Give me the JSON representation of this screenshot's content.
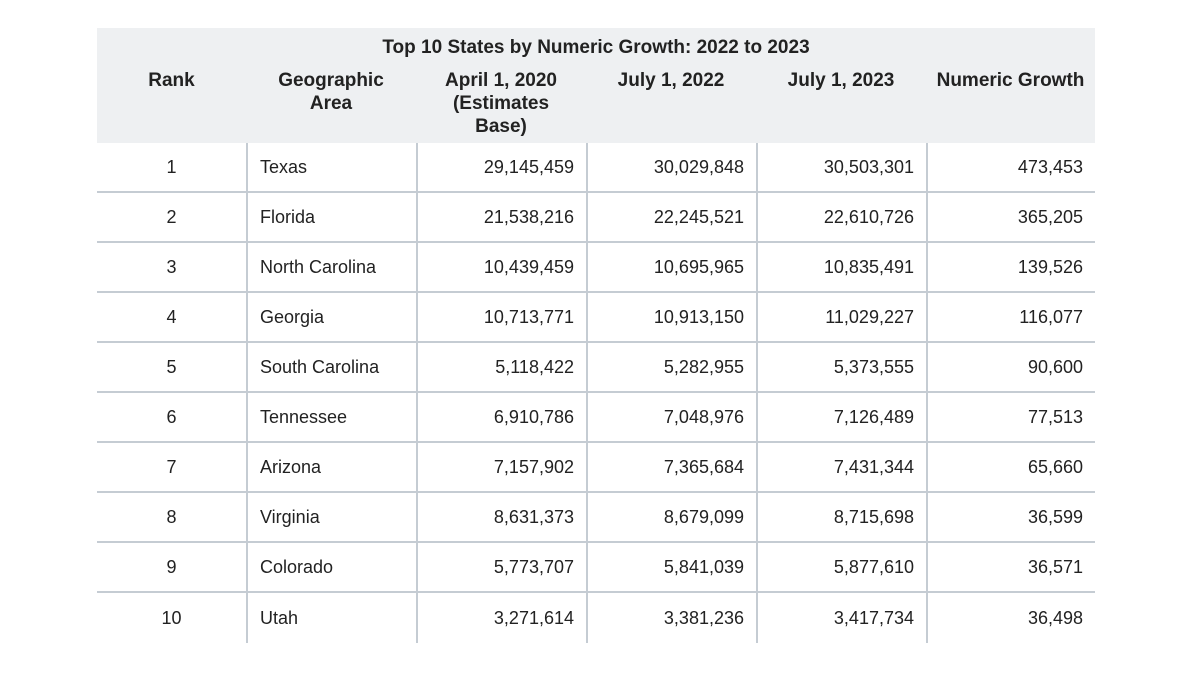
{
  "table": {
    "title": "Top 10 States by Numeric Growth: 2022 to 2023",
    "columns": [
      {
        "line1": "Rank",
        "line2": "",
        "line3": ""
      },
      {
        "line1": "Geographic",
        "line2": "Area",
        "line3": ""
      },
      {
        "line1": "April 1, 2020",
        "line2": "(Estimates",
        "line3": "Base)"
      },
      {
        "line1": "July 1, 2022",
        "line2": "",
        "line3": ""
      },
      {
        "line1": "July 1, 2023",
        "line2": "",
        "line3": ""
      },
      {
        "line1": "Numeric Growth",
        "line2": "",
        "line3": ""
      }
    ],
    "rows": [
      {
        "rank": "1",
        "area": "Texas",
        "apr2020": "29,145,459",
        "jul2022": "30,029,848",
        "jul2023": "30,503,301",
        "growth": "473,453"
      },
      {
        "rank": "2",
        "area": "Florida",
        "apr2020": "21,538,216",
        "jul2022": "22,245,521",
        "jul2023": "22,610,726",
        "growth": "365,205"
      },
      {
        "rank": "3",
        "area": "North Carolina",
        "apr2020": "10,439,459",
        "jul2022": "10,695,965",
        "jul2023": "10,835,491",
        "growth": "139,526"
      },
      {
        "rank": "4",
        "area": "Georgia",
        "apr2020": "10,713,771",
        "jul2022": "10,913,150",
        "jul2023": "11,029,227",
        "growth": "116,077"
      },
      {
        "rank": "5",
        "area": "South Carolina",
        "apr2020": "5,118,422",
        "jul2022": "5,282,955",
        "jul2023": "5,373,555",
        "growth": "90,600"
      },
      {
        "rank": "6",
        "area": "Tennessee",
        "apr2020": "6,910,786",
        "jul2022": "7,048,976",
        "jul2023": "7,126,489",
        "growth": "77,513"
      },
      {
        "rank": "7",
        "area": "Arizona",
        "apr2020": "7,157,902",
        "jul2022": "7,365,684",
        "jul2023": "7,431,344",
        "growth": "65,660"
      },
      {
        "rank": "8",
        "area": "Virginia",
        "apr2020": "8,631,373",
        "jul2022": "8,679,099",
        "jul2023": "8,715,698",
        "growth": "36,599"
      },
      {
        "rank": "9",
        "area": "Colorado",
        "apr2020": "5,773,707",
        "jul2022": "5,841,039",
        "jul2023": "5,877,610",
        "growth": "36,571"
      },
      {
        "rank": "10",
        "area": "Utah",
        "apr2020": "3,271,614",
        "jul2022": "3,381,236",
        "jul2023": "3,417,734",
        "growth": "36,498"
      }
    ]
  }
}
